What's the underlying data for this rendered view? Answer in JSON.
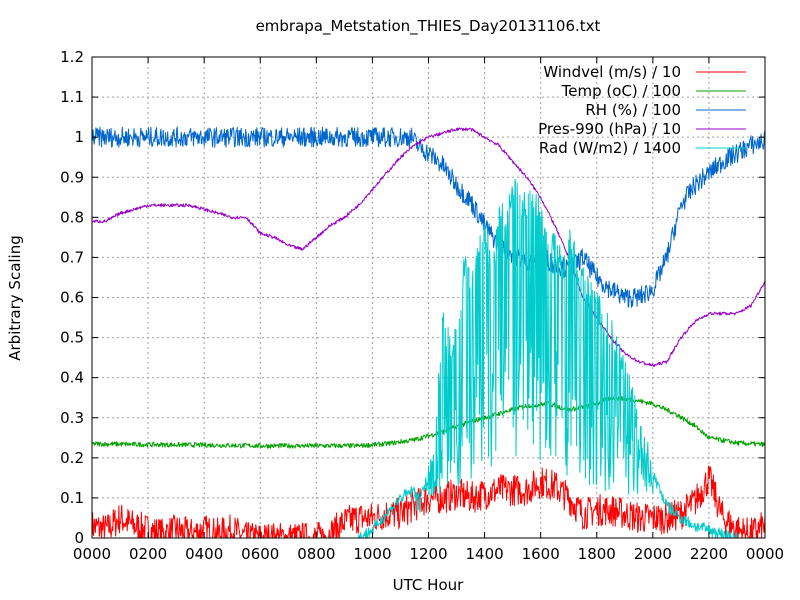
{
  "chart_data": {
    "type": "line",
    "title": "embrapa_Metstation_THIES_Day20131106.txt",
    "xlabel": "UTC Hour",
    "ylabel": "Arbitrary Scaling",
    "xlim": [
      0,
      24
    ],
    "ylim": [
      0,
      1.2
    ],
    "x_ticks": [
      {
        "value": 0,
        "label": "0000"
      },
      {
        "value": 2,
        "label": "0200"
      },
      {
        "value": 4,
        "label": "0400"
      },
      {
        "value": 6,
        "label": "0600"
      },
      {
        "value": 8,
        "label": "0800"
      },
      {
        "value": 10,
        "label": "1000"
      },
      {
        "value": 12,
        "label": "1200"
      },
      {
        "value": 14,
        "label": "1400"
      },
      {
        "value": 16,
        "label": "1600"
      },
      {
        "value": 18,
        "label": "1800"
      },
      {
        "value": 20,
        "label": "2000"
      },
      {
        "value": 22,
        "label": "2200"
      },
      {
        "value": 24,
        "label": "0000"
      }
    ],
    "y_ticks": [
      {
        "value": 0,
        "label": "0"
      },
      {
        "value": 0.1,
        "label": "0.1"
      },
      {
        "value": 0.2,
        "label": "0.2"
      },
      {
        "value": 0.3,
        "label": "0.3"
      },
      {
        "value": 0.4,
        "label": "0.4"
      },
      {
        "value": 0.5,
        "label": "0.5"
      },
      {
        "value": 0.6,
        "label": "0.6"
      },
      {
        "value": 0.7,
        "label": "0.7"
      },
      {
        "value": 0.8,
        "label": "0.8"
      },
      {
        "value": 0.9,
        "label": "0.9"
      },
      {
        "value": 1.0,
        "label": "1"
      },
      {
        "value": 1.1,
        "label": "1.1"
      },
      {
        "value": 1.2,
        "label": "1.2"
      }
    ],
    "grid": true,
    "legend_position": "top-right",
    "series": [
      {
        "name": "Windvel (m/s) / 10",
        "color": "#ff0000",
        "x": [
          0,
          0.5,
          1,
          1.5,
          2,
          2.5,
          3,
          3.5,
          4,
          4.5,
          5,
          5.5,
          6,
          6.5,
          7,
          7.5,
          8,
          8.5,
          9,
          9.5,
          10,
          10.5,
          11,
          11.5,
          12,
          12.5,
          13,
          13.5,
          14,
          14.5,
          15,
          15.5,
          16,
          16.5,
          17,
          17.5,
          18,
          18.5,
          19,
          19.5,
          20,
          20.5,
          21,
          21.5,
          22,
          22.5,
          23,
          23.5,
          24
        ],
        "y": [
          0.03,
          0.02,
          0.05,
          0.03,
          0.02,
          0.01,
          0.02,
          0.01,
          0.02,
          0.01,
          0.02,
          0.0,
          0.0,
          0.0,
          0.0,
          0.0,
          0.0,
          0.01,
          0.04,
          0.05,
          0.05,
          0.06,
          0.06,
          0.08,
          0.1,
          0.1,
          0.11,
          0.1,
          0.11,
          0.12,
          0.12,
          0.12,
          0.14,
          0.13,
          0.1,
          0.06,
          0.07,
          0.07,
          0.06,
          0.05,
          0.05,
          0.05,
          0.06,
          0.09,
          0.15,
          0.05,
          0.02,
          0.01,
          0.03
        ],
        "noise": 0.04
      },
      {
        "name": "Temp (oC) / 100",
        "color": "#00a000",
        "x": [
          0,
          2,
          4,
          6,
          8,
          9.5,
          10.5,
          11.5,
          12.5,
          13.5,
          14.5,
          15.5,
          16.3,
          17,
          17.8,
          18.5,
          19.3,
          20,
          20.8,
          21.5,
          22,
          23,
          24
        ],
        "y": [
          0.235,
          0.233,
          0.232,
          0.23,
          0.23,
          0.23,
          0.235,
          0.245,
          0.265,
          0.29,
          0.31,
          0.33,
          0.335,
          0.32,
          0.33,
          0.35,
          0.345,
          0.335,
          0.31,
          0.28,
          0.25,
          0.237,
          0.233
        ],
        "noise": 0.006
      },
      {
        "name": "RH (%) / 100",
        "color": "#0066cc",
        "x": [
          0,
          2,
          4,
          6,
          8,
          10,
          11.4,
          11.6,
          12,
          12.5,
          13,
          13.5,
          14,
          14.5,
          15,
          15.5,
          16,
          16.5,
          17,
          17.5,
          18,
          18.5,
          19,
          19.5,
          20,
          20.5,
          21,
          21.5,
          22,
          22.5,
          23,
          23.5,
          24
        ],
        "y": [
          1.0,
          1.0,
          1.0,
          1.0,
          1.0,
          1.0,
          1.0,
          0.98,
          0.96,
          0.93,
          0.88,
          0.84,
          0.78,
          0.73,
          0.71,
          0.69,
          0.71,
          0.68,
          0.67,
          0.7,
          0.65,
          0.62,
          0.6,
          0.6,
          0.62,
          0.7,
          0.83,
          0.88,
          0.91,
          0.94,
          0.96,
          0.98,
          0.99
        ],
        "noise": 0.025
      },
      {
        "name": "Pres-990 (hPa) / 10",
        "color": "#9900cc",
        "x": [
          0,
          0.5,
          1,
          1.5,
          2,
          2.5,
          3,
          3.5,
          4,
          4.5,
          5,
          5.5,
          6,
          6.5,
          7,
          7.5,
          8,
          8.5,
          9,
          9.5,
          10,
          10.5,
          11,
          11.5,
          12,
          12.5,
          13,
          13.5,
          14,
          14.5,
          15,
          15.5,
          16,
          16.5,
          17,
          17.5,
          18,
          18.5,
          19,
          19.5,
          20,
          20.5,
          21,
          21.5,
          22,
          22.5,
          23,
          23.5,
          24
        ],
        "y": [
          0.79,
          0.79,
          0.81,
          0.82,
          0.83,
          0.83,
          0.83,
          0.83,
          0.82,
          0.81,
          0.8,
          0.8,
          0.76,
          0.75,
          0.73,
          0.72,
          0.75,
          0.78,
          0.8,
          0.83,
          0.87,
          0.91,
          0.95,
          0.98,
          1.0,
          1.01,
          1.02,
          1.02,
          1.0,
          0.98,
          0.94,
          0.9,
          0.85,
          0.78,
          0.7,
          0.6,
          0.55,
          0.5,
          0.46,
          0.44,
          0.43,
          0.44,
          0.5,
          0.54,
          0.56,
          0.56,
          0.56,
          0.58,
          0.64
        ],
        "noise": 0.004
      },
      {
        "name": "Rad (W/m2) / 1400",
        "color": "#00cccc",
        "x": [
          0,
          9.5,
          10.0,
          10.5,
          11.0,
          11.5,
          12.0,
          12.3,
          12.5,
          12.8,
          13.0,
          13.3,
          13.5,
          13.8,
          14.0,
          14.3,
          14.5,
          14.8,
          15.0,
          15.3,
          15.5,
          15.8,
          16.0,
          16.3,
          16.5,
          16.8,
          17.0,
          17.3,
          17.5,
          17.8,
          18.0,
          18.3,
          18.5,
          18.8,
          19.0,
          19.3,
          19.5,
          19.8,
          20.0,
          20.5,
          21.0,
          21.5,
          22.0,
          22.5,
          23.0,
          24
        ],
        "y": [
          0.0,
          0.0,
          0.02,
          0.06,
          0.1,
          0.12,
          0.18,
          0.35,
          0.6,
          0.5,
          0.55,
          0.72,
          0.68,
          0.75,
          0.8,
          0.7,
          0.85,
          0.82,
          0.93,
          0.88,
          0.86,
          0.9,
          0.85,
          0.75,
          0.8,
          0.7,
          0.78,
          0.72,
          0.68,
          0.65,
          0.62,
          0.58,
          0.55,
          0.5,
          0.45,
          0.38,
          0.3,
          0.25,
          0.16,
          0.08,
          0.05,
          0.03,
          0.02,
          0.01,
          0.0,
          0.0
        ],
        "noise": 0.0
      }
    ]
  }
}
